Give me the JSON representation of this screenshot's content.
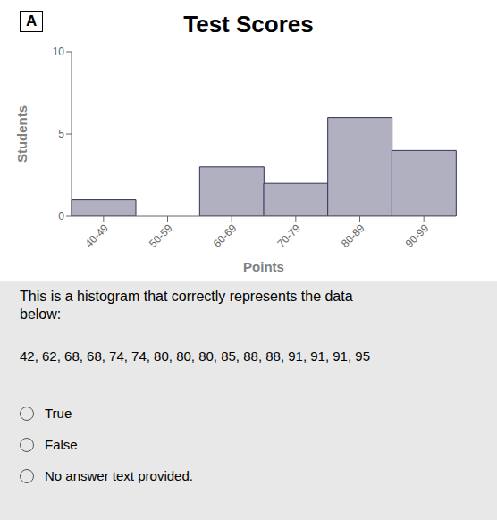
{
  "chart_data": {
    "type": "bar",
    "title": "Test Scores",
    "xlabel": "Points",
    "ylabel": "Students",
    "categories": [
      "40-49",
      "50-59",
      "60-69",
      "70-79",
      "80-89",
      "90-99"
    ],
    "values": [
      1,
      0,
      3,
      2,
      6,
      4
    ],
    "color": "#b0b0c0",
    "ylim": [
      0,
      10
    ],
    "yticks": [
      0,
      5,
      10
    ],
    "annotations": [
      "A",
      "This is a histogram that correctly represents the data\nbelow:",
      "42, 62, 68, 68, 74, 74, 80, 80, 80, 85, 88, 88, 91, 91, 91, 95",
      "True",
      "False",
      "No answer text provided."
    ]
  }
}
